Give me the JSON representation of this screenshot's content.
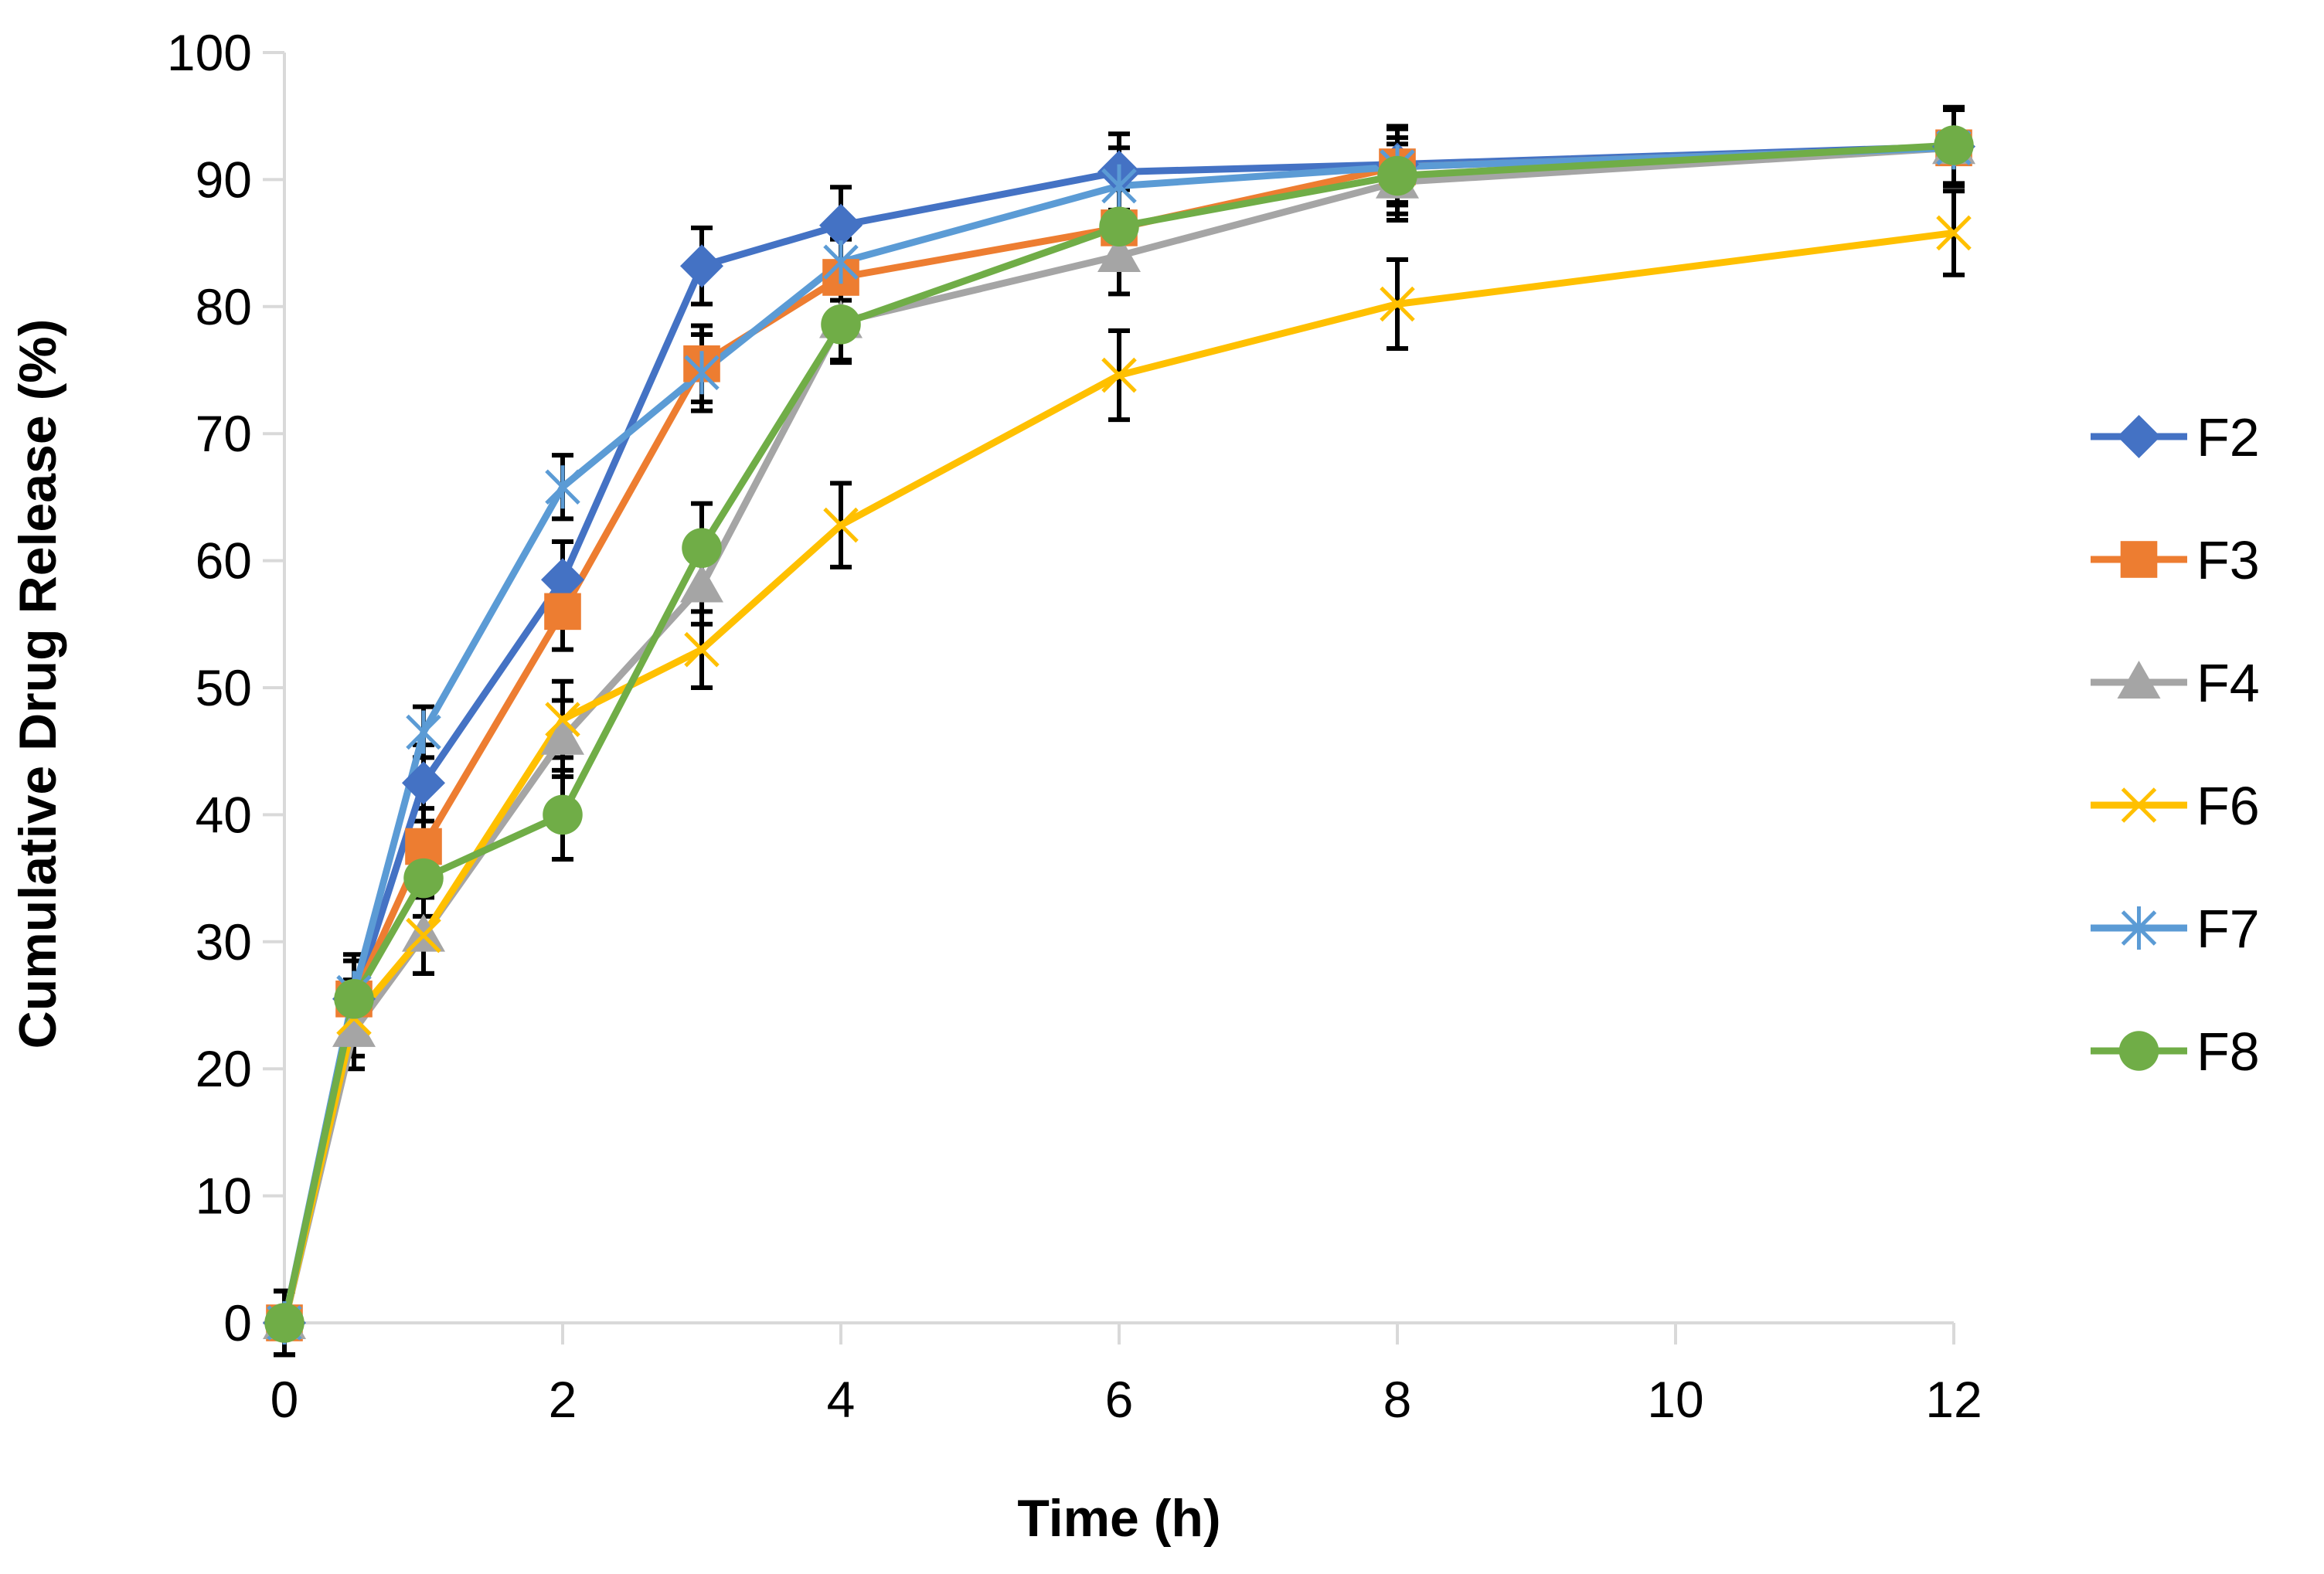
{
  "chart_data": {
    "type": "line",
    "title": "",
    "xlabel": "Time (h)",
    "ylabel": "Cumulative Drug Release (%)",
    "xlim": [
      0,
      12
    ],
    "ylim": [
      0,
      100
    ],
    "xticks": [
      0,
      2,
      4,
      6,
      8,
      10,
      12
    ],
    "yticks": [
      0,
      10,
      20,
      30,
      40,
      50,
      60,
      70,
      80,
      90,
      100
    ],
    "grid": false,
    "legend_position": "right",
    "x": [
      0,
      0.5,
      1,
      2,
      3,
      4,
      6,
      8,
      12
    ],
    "series": [
      {
        "name": "F2",
        "color": "#4472C4",
        "marker": "diamond",
        "values": [
          0,
          25.5,
          42.5,
          58.5,
          83.2,
          86.4,
          90.6,
          91.2,
          92.6
        ],
        "errors": [
          2.5,
          3.0,
          3.0,
          3.0,
          3.0,
          3.0,
          3.0,
          3.0,
          3.0
        ]
      },
      {
        "name": "F3",
        "color": "#ED7D31",
        "marker": "square",
        "values": [
          0,
          25.5,
          37.5,
          56.0,
          75.5,
          82.3,
          86.2,
          91.0,
          92.5
        ],
        "errors": [
          2.5,
          3.0,
          3.0,
          3.0,
          3.0,
          3.0,
          3.0,
          3.0,
          3.0
        ]
      },
      {
        "name": "F4",
        "color": "#A5A5A5",
        "marker": "triangle",
        "values": [
          0,
          23.0,
          30.5,
          46.0,
          58.0,
          78.8,
          84.0,
          89.8,
          92.5
        ],
        "errors": [
          2.5,
          3.0,
          3.0,
          3.0,
          3.0,
          3.0,
          3.0,
          3.0,
          3.0
        ]
      },
      {
        "name": "F6",
        "color": "#FFC000",
        "marker": "x",
        "values": [
          0,
          24.0,
          30.5,
          47.5,
          53.0,
          62.8,
          74.6,
          80.2,
          85.8
        ],
        "errors": [
          2.5,
          3.0,
          3.0,
          3.0,
          3.0,
          3.3,
          3.5,
          3.5,
          3.3
        ]
      },
      {
        "name": "F7",
        "color": "#5B9BD5",
        "marker": "star",
        "values": [
          0,
          26.0,
          46.5,
          65.8,
          74.8,
          83.5,
          89.5,
          91.0,
          92.5
        ],
        "errors": [
          2.5,
          3.0,
          2.0,
          2.5,
          3.0,
          3.0,
          3.0,
          3.0,
          3.0
        ]
      },
      {
        "name": "F8",
        "color": "#70AD47",
        "marker": "circle",
        "values": [
          0,
          25.5,
          35.0,
          40.0,
          61.0,
          78.6,
          86.3,
          90.3,
          92.7
        ],
        "errors": [
          2.5,
          3.0,
          3.0,
          3.5,
          3.5,
          3.0,
          3.0,
          3.0,
          3.0
        ]
      }
    ]
  }
}
